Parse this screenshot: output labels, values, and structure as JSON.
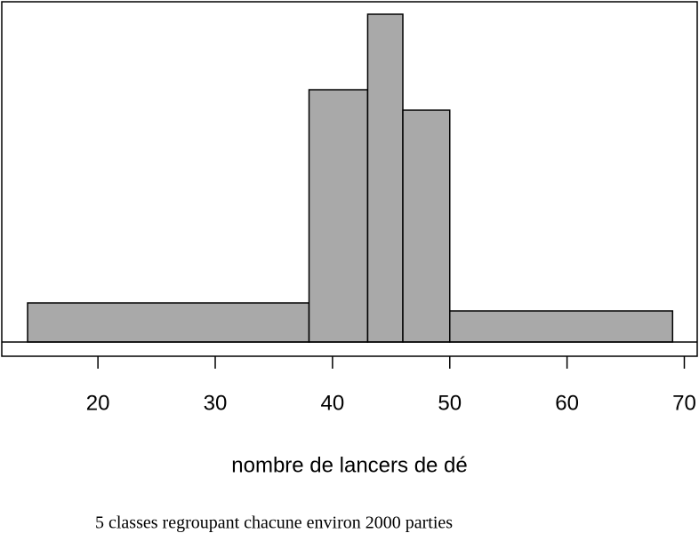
{
  "chart_data": {
    "type": "histogram",
    "xlabel": "nombre de lancers de dé",
    "subtitle": "5 classes regroupant chacune environ 2000 parties",
    "bins": [
      14,
      38,
      43,
      46,
      50,
      69
    ],
    "values": [
      44,
      284,
      369,
      261,
      35
    ],
    "color": "#a9a9a9",
    "xlim": [
      11.8,
      71.1
    ],
    "xticks": [
      20,
      30,
      40,
      50,
      60,
      70
    ],
    "ylim": [
      -16,
      383
    ]
  }
}
